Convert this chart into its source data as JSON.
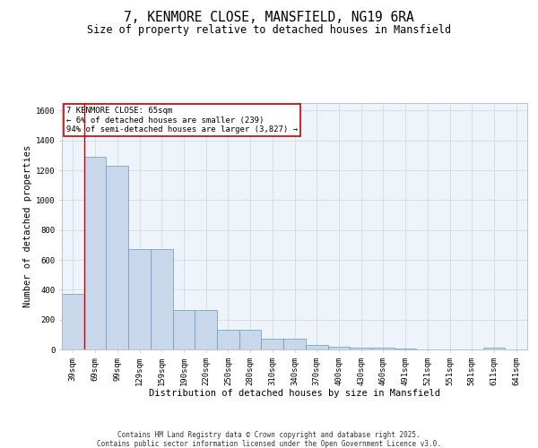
{
  "title_line1": "7, KENMORE CLOSE, MANSFIELD, NG19 6RA",
  "title_line2": "Size of property relative to detached houses in Mansfield",
  "xlabel": "Distribution of detached houses by size in Mansfield",
  "ylabel": "Number of detached properties",
  "categories": [
    "39sqm",
    "69sqm",
    "99sqm",
    "129sqm",
    "159sqm",
    "190sqm",
    "220sqm",
    "250sqm",
    "280sqm",
    "310sqm",
    "340sqm",
    "370sqm",
    "400sqm",
    "430sqm",
    "460sqm",
    "491sqm",
    "521sqm",
    "551sqm",
    "581sqm",
    "611sqm",
    "641sqm"
  ],
  "values": [
    375,
    1290,
    1230,
    670,
    670,
    265,
    265,
    130,
    130,
    75,
    75,
    30,
    20,
    15,
    10,
    5,
    0,
    0,
    0,
    15,
    0
  ],
  "bar_facecolor": "#c8d8ea",
  "bar_edgecolor": "#6699bb",
  "vline_color": "#cc0000",
  "annotation_text_line1": "7 KENMORE CLOSE: 65sqm",
  "annotation_text_line2": "← 6% of detached houses are smaller (239)",
  "annotation_text_line3": "94% of semi-detached houses are larger (3,827) →",
  "annotation_box_color": "#cc0000",
  "ylim": [
    0,
    1650
  ],
  "yticks": [
    0,
    200,
    400,
    600,
    800,
    1000,
    1200,
    1400,
    1600
  ],
  "grid_color": "#ccdde8",
  "bg_color": "#eef4fa",
  "footer_line1": "Contains HM Land Registry data © Crown copyright and database right 2025.",
  "footer_line2": "Contains public sector information licensed under the Open Government Licence v3.0.",
  "title_fontsize": 10.5,
  "subtitle_fontsize": 8.5,
  "axis_label_fontsize": 7.5,
  "tick_fontsize": 6.5,
  "annotation_fontsize": 6.5,
  "footer_fontsize": 5.5
}
